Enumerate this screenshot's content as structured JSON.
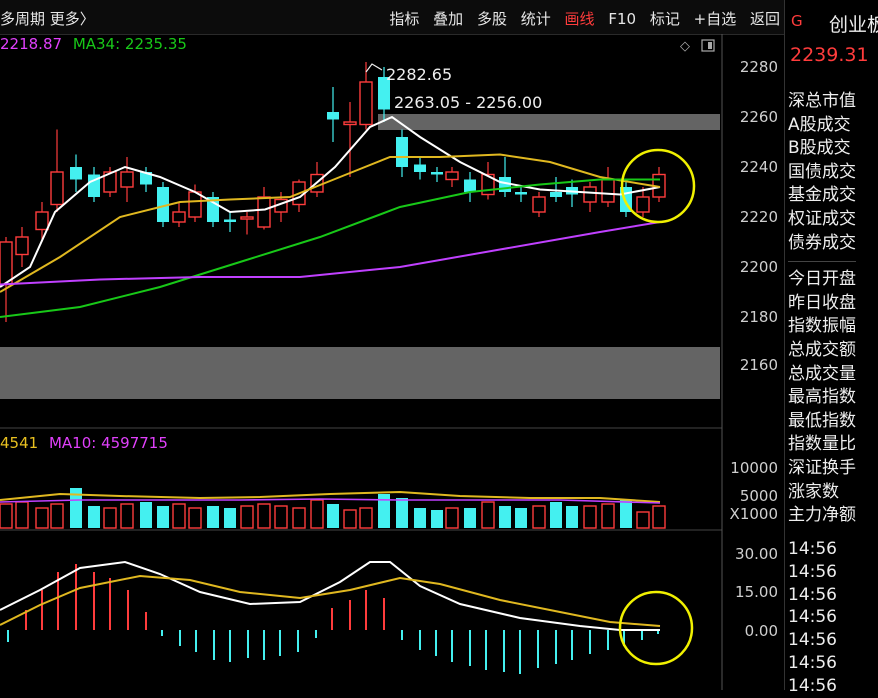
{
  "topbar": {
    "left_text": "多周期  更多〉",
    "menu": [
      "指标",
      "叠加",
      "多股",
      "统计",
      "画线",
      "F10",
      "标记",
      "+自选",
      "返回"
    ],
    "active_menu": "画线"
  },
  "main_chart": {
    "ma_labels": [
      {
        "text": "2218.87",
        "color": "#e040fb"
      },
      {
        "text": "MA34: 2235.35",
        "color": "#18c818"
      }
    ],
    "price_axis": [
      "2280",
      "2260",
      "2240",
      "2220",
      "2200",
      "2180",
      "2160"
    ],
    "annotation_high": "2282.65",
    "annotation_range": "2263.05 - 2256.00"
  },
  "volume_chart": {
    "labels": [
      {
        "text": "4541",
        "color": "#e8c020"
      },
      {
        "text": "MA10: 4597715",
        "color": "#e040fb"
      }
    ],
    "axis": [
      "10000",
      "5000"
    ],
    "unit": "X1000"
  },
  "macd_chart": {
    "axis": [
      "30.00",
      "15.00",
      "0.00"
    ]
  },
  "side_panel": {
    "header_tag": "G",
    "header_name": "创业板",
    "price": "2239.31",
    "items": [
      "深总市值",
      "A股成交",
      "B股成交",
      "国债成交",
      "基金成交",
      "权证成交",
      "债券成交",
      "",
      "今日开盘",
      "昨日收盘",
      "指数振幅",
      "总成交额",
      "总成交量",
      "最高指数",
      "最低指数",
      "指数量比",
      "深证换手",
      "涨家数",
      "主力净额"
    ],
    "times": [
      "14:56",
      "14:56",
      "14:56",
      "14:56",
      "14:56",
      "14:56",
      "14:56"
    ]
  },
  "colors": {
    "up": "#ff3c3c",
    "down": "#44f0f0",
    "ma5": "#ffffff",
    "ma10": "#e0b820",
    "ma34": "#18c818",
    "ma60": "#c040ff",
    "circle": "#f0f000"
  }
}
